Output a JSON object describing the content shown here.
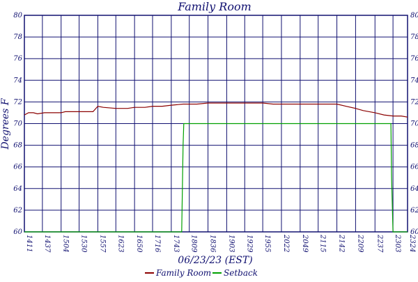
{
  "chart_data": {
    "type": "line",
    "title": "Family Room",
    "ylabel": "Degrees F",
    "xlabel": "06/23/23 (EST)",
    "ylim": [
      60,
      80
    ],
    "yticks": [
      60,
      62,
      64,
      66,
      68,
      70,
      72,
      74,
      76,
      78,
      80
    ],
    "xlim": [
      "14:11",
      "23:24"
    ],
    "xticks": [
      "14:11",
      "14:37",
      "15:04",
      "15:30",
      "15:57",
      "16:23",
      "16:50",
      "17:16",
      "17:43",
      "18:09",
      "18:36",
      "19:03",
      "19:29",
      "19:55",
      "20:22",
      "20:49",
      "21:15",
      "21:42",
      "22:09",
      "22:37",
      "23:03",
      "23:24"
    ],
    "grid": true,
    "legend_position": "bottom-center",
    "series": [
      {
        "name": "Family Room",
        "color": "#8b0000",
        "points": [
          [
            "14:11",
            70.8
          ],
          [
            "14:17",
            71.0
          ],
          [
            "14:24",
            71.0
          ],
          [
            "14:30",
            70.9
          ],
          [
            "14:40",
            71.0
          ],
          [
            "14:55",
            71.0
          ],
          [
            "15:04",
            71.0
          ],
          [
            "15:10",
            71.1
          ],
          [
            "15:30",
            71.1
          ],
          [
            "15:50",
            71.1
          ],
          [
            "15:57",
            71.6
          ],
          [
            "16:05",
            71.5
          ],
          [
            "16:23",
            71.4
          ],
          [
            "16:40",
            71.4
          ],
          [
            "16:50",
            71.5
          ],
          [
            "17:05",
            71.5
          ],
          [
            "17:16",
            71.6
          ],
          [
            "17:30",
            71.6
          ],
          [
            "17:43",
            71.7
          ],
          [
            "18:00",
            71.8
          ],
          [
            "18:20",
            71.8
          ],
          [
            "18:36",
            71.9
          ],
          [
            "19:03",
            71.9
          ],
          [
            "19:29",
            71.9
          ],
          [
            "19:45",
            71.9
          ],
          [
            "19:55",
            71.9
          ],
          [
            "20:10",
            71.8
          ],
          [
            "20:22",
            71.8
          ],
          [
            "20:49",
            71.8
          ],
          [
            "21:15",
            71.8
          ],
          [
            "21:42",
            71.8
          ],
          [
            "21:55",
            71.6
          ],
          [
            "22:09",
            71.4
          ],
          [
            "22:20",
            71.2
          ],
          [
            "22:37",
            71.0
          ],
          [
            "22:50",
            70.8
          ],
          [
            "23:03",
            70.7
          ],
          [
            "23:15",
            70.7
          ],
          [
            "23:24",
            70.6
          ]
        ]
      },
      {
        "name": "Setback",
        "color": "#00a000",
        "points": [
          [
            "14:11",
            60.0
          ],
          [
            "17:58",
            60.0
          ],
          [
            "18:00",
            68.0
          ],
          [
            "18:01",
            70.0
          ],
          [
            "23:00",
            70.0
          ],
          [
            "23:01",
            65.0
          ],
          [
            "23:03",
            60.0
          ],
          [
            "23:24",
            60.0
          ]
        ]
      }
    ]
  }
}
